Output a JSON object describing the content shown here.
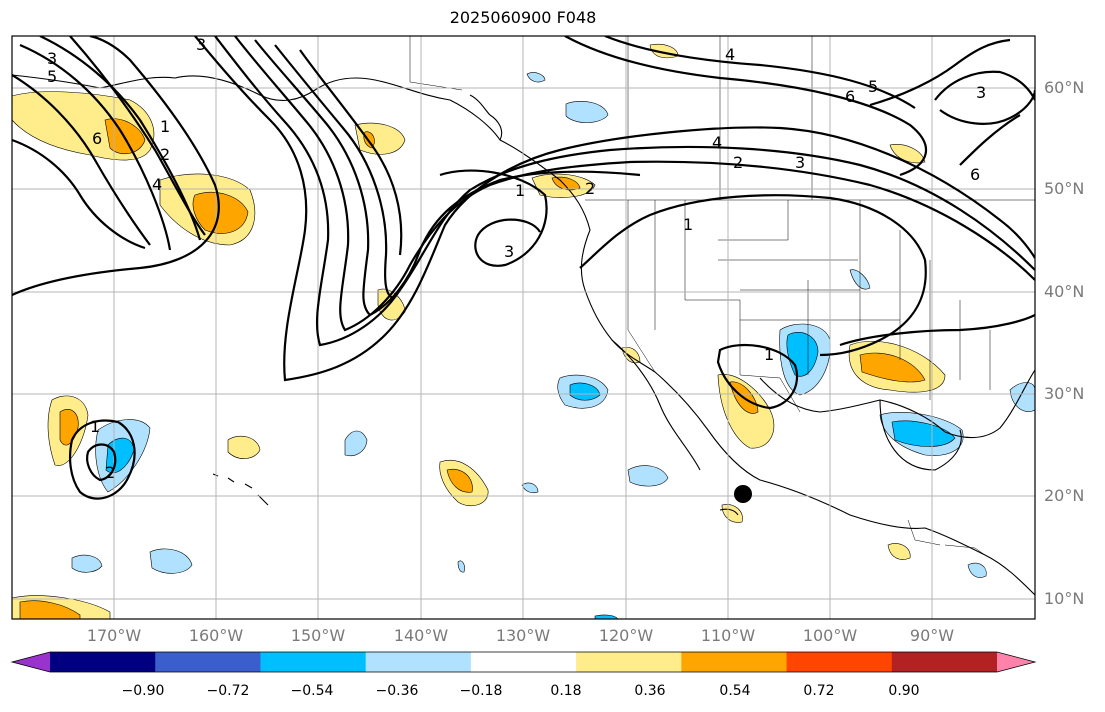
{
  "title": "2025060900 F048",
  "latitude_labels": [
    "60°N",
    "50°N",
    "40°N",
    "30°N",
    "20°N",
    "10°N"
  ],
  "longitude_labels": [
    "170°W",
    "160°W",
    "150°W",
    "140°W",
    "130°W",
    "120°W",
    "110°W",
    "100°W",
    "90°W"
  ],
  "contour_labels": [
    "3",
    "5",
    "6",
    "4",
    "1",
    "2",
    "3",
    "4",
    "2",
    "3",
    "1",
    "2",
    "5",
    "6",
    "3",
    "4",
    "6",
    "1",
    "1",
    "3",
    "1",
    "2"
  ],
  "colorbar": {
    "tick_labels": [
      "−0.90",
      "−0.72",
      "−0.54",
      "−0.36",
      "−0.18",
      "0.18",
      "0.36",
      "0.54",
      "0.72",
      "0.90"
    ],
    "colors": [
      "#9a32cd",
      "#000080",
      "#3a5fcd",
      "#00bfff",
      "#b0e2ff",
      "#ffffff",
      "#ffec8b",
      "#ffa500",
      "#ff4500",
      "#b22222",
      "#ff82ab"
    ]
  },
  "colors": {
    "positive_light": "#ffec8b",
    "positive_mid": "#ffa500",
    "negative_light": "#b0e2ff",
    "negative_mid": "#00bfff",
    "contour": "#000000",
    "gridline": "#b4b4b4",
    "marker": "#000000"
  }
}
